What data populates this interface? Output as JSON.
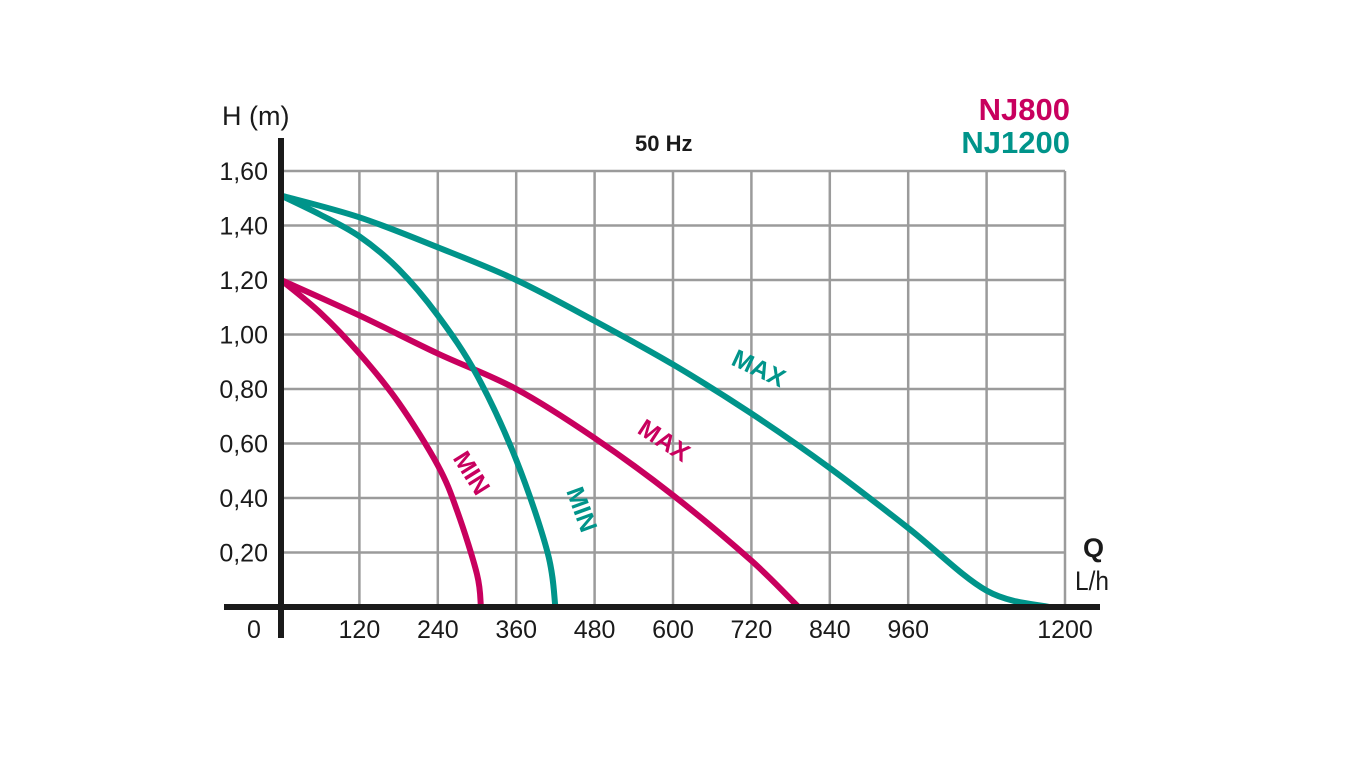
{
  "chart_data": {
    "type": "line",
    "frequency_label": "50 Hz",
    "xlabel": "Q",
    "xunit": "L/h",
    "ylabel": "H (m)",
    "origin_label": "0",
    "xlim": [
      0,
      1200
    ],
    "ylim": [
      0,
      1.6
    ],
    "x_ticks": [
      120,
      240,
      360,
      480,
      600,
      720,
      840,
      960,
      1200
    ],
    "x_tick_labels": [
      "120",
      "240",
      "360",
      "480",
      "600",
      "720",
      "840",
      "960",
      "1200"
    ],
    "y_ticks": [
      0.2,
      0.4,
      0.6,
      0.8,
      1.0,
      1.2,
      1.4,
      1.6
    ],
    "y_tick_labels": [
      "0,20",
      "0,40",
      "0,60",
      "0,80",
      "1,00",
      "1,20",
      "1,40",
      "1,60"
    ],
    "x_grid": [
      0,
      120,
      240,
      360,
      480,
      600,
      720,
      840,
      960,
      1080
    ],
    "y_grid": [
      0.2,
      0.4,
      0.6,
      0.8,
      1.0,
      1.2,
      1.4,
      1.6
    ],
    "grid": true,
    "legend": [
      {
        "name": "NJ800",
        "color": "#c8005e"
      },
      {
        "name": "NJ1200",
        "color": "#00948a"
      }
    ],
    "series": [
      {
        "model": "NJ800",
        "label": "MIN",
        "color": "#c8005e",
        "x": [
          0,
          60,
          120,
          180,
          240,
          270,
          300,
          306
        ],
        "y": [
          1.2,
          1.08,
          0.93,
          0.75,
          0.52,
          0.35,
          0.12,
          0
        ]
      },
      {
        "model": "NJ800",
        "label": "MAX",
        "color": "#c8005e",
        "x": [
          0,
          120,
          240,
          360,
          480,
          600,
          720,
          792
        ],
        "y": [
          1.2,
          1.07,
          0.93,
          0.8,
          0.62,
          0.41,
          0.17,
          0
        ]
      },
      {
        "model": "NJ1200",
        "label": "MIN",
        "color": "#00948a",
        "x": [
          0,
          60,
          120,
          180,
          240,
          300,
          360,
          408,
          420
        ],
        "y": [
          1.51,
          1.44,
          1.36,
          1.24,
          1.07,
          0.85,
          0.54,
          0.2,
          0
        ]
      },
      {
        "model": "NJ1200",
        "label": "MAX",
        "color": "#00948a",
        "x": [
          0,
          120,
          240,
          360,
          480,
          600,
          720,
          840,
          960,
          1080,
          1176
        ],
        "y": [
          1.51,
          1.43,
          1.32,
          1.2,
          1.05,
          0.89,
          0.71,
          0.51,
          0.29,
          0.06,
          0
        ]
      }
    ]
  }
}
